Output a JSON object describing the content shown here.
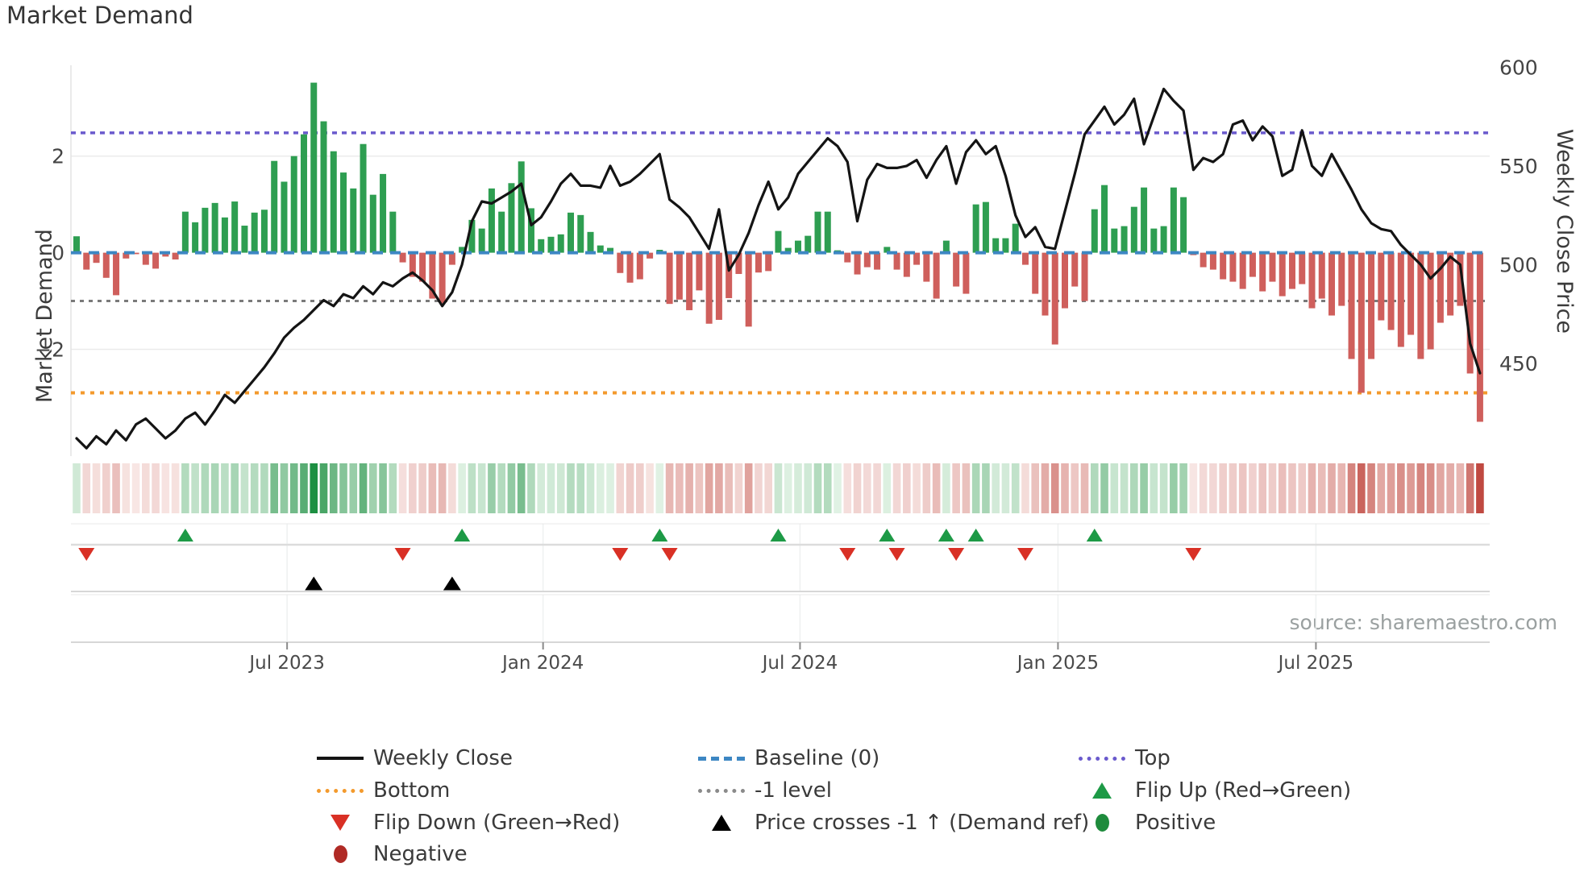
{
  "title": "Market Demand",
  "source": "source: sharemaestro.com",
  "axes": {
    "left_label": "Market Demand",
    "right_label": "Weekly Close Price",
    "left_ticks": [
      {
        "label": "2",
        "value": 2
      },
      {
        "label": "0",
        "value": 0
      },
      {
        "label": "−2",
        "value": -2
      }
    ],
    "right_ticks": [
      {
        "label": "600",
        "value": 600
      },
      {
        "label": "550",
        "value": 550
      },
      {
        "label": "500",
        "value": 500
      },
      {
        "label": "450",
        "value": 450
      }
    ]
  },
  "chart_data": {
    "type": "bar+line",
    "title": "Market Demand",
    "ylabel_left": "Market Demand",
    "ylabel_right": "Weekly Close Price",
    "x_unit": "weeks",
    "n_weeks": 143,
    "x_tick_labels": [
      "Jul 2023",
      "Jan 2024",
      "Jul 2024",
      "Jan 2025",
      "Jul 2025"
    ],
    "x_tick_pos_weeks": [
      21.3,
      47.2,
      73.2,
      99.3,
      125.4
    ],
    "demand_ylim": [
      -4.21,
      3.88
    ],
    "price_ylim": [
      403,
      601
    ],
    "grid_demand_values": [
      2,
      -2
    ],
    "ref_levels": {
      "top": 2.48,
      "baseline": 0,
      "minus_one": -1,
      "bottom": -2.9
    },
    "demand": [
      0.34,
      -0.35,
      -0.21,
      -0.52,
      -0.88,
      -0.12,
      -0.03,
      -0.25,
      -0.33,
      -0.08,
      -0.14,
      0.85,
      0.63,
      0.93,
      1.03,
      0.73,
      1.06,
      0.56,
      0.83,
      0.89,
      1.9,
      1.47,
      2.0,
      2.45,
      3.52,
      2.72,
      2.1,
      1.66,
      1.33,
      2.25,
      1.2,
      1.63,
      0.85,
      -0.2,
      -0.5,
      -0.6,
      -0.95,
      -1.05,
      -0.25,
      0.12,
      0.68,
      0.5,
      1.33,
      0.85,
      1.44,
      1.89,
      0.92,
      0.28,
      0.33,
      0.38,
      0.83,
      0.78,
      0.43,
      0.15,
      0.1,
      -0.42,
      -0.62,
      -0.55,
      -0.12,
      0.06,
      -1.06,
      -0.97,
      -1.19,
      -0.78,
      -1.47,
      -1.39,
      -0.94,
      -0.44,
      -1.53,
      -0.41,
      -0.38,
      0.45,
      0.1,
      0.25,
      0.35,
      0.85,
      0.85,
      0.05,
      -0.2,
      -0.45,
      -0.3,
      -0.35,
      0.12,
      -0.35,
      -0.5,
      -0.25,
      -0.6,
      -0.95,
      0.25,
      -0.7,
      -0.85,
      1.0,
      1.05,
      0.3,
      0.3,
      0.6,
      -0.25,
      -0.85,
      -1.3,
      -1.9,
      -1.15,
      -0.7,
      -1.0,
      0.9,
      1.4,
      0.5,
      0.55,
      0.95,
      1.35,
      0.5,
      0.55,
      1.35,
      1.15,
      -0.05,
      -0.3,
      -0.35,
      -0.55,
      -0.6,
      -0.75,
      -0.5,
      -0.8,
      -0.6,
      -0.9,
      -0.75,
      -0.65,
      -1.15,
      -0.95,
      -1.3,
      -1.1,
      -2.2,
      -2.9,
      -2.2,
      -1.4,
      -1.6,
      -1.95,
      -1.7,
      -2.2,
      -2.0,
      -1.45,
      -1.3,
      -1.1,
      -2.5,
      -3.5
    ],
    "price": [
      412,
      407,
      413,
      409,
      416,
      411,
      419,
      422,
      417,
      412,
      416,
      422,
      425,
      419,
      426,
      434,
      430,
      436,
      442,
      448,
      455,
      463,
      468,
      472,
      477,
      482,
      479,
      485,
      483,
      489,
      485,
      491,
      489,
      493,
      496,
      492,
      487,
      479,
      486,
      500,
      522,
      532,
      531,
      534,
      537,
      541,
      520,
      524,
      532,
      541,
      546,
      540,
      540,
      539,
      550,
      540,
      542,
      546,
      551,
      556,
      533,
      529,
      524,
      516,
      508,
      528,
      497,
      505,
      516,
      530,
      542,
      528,
      534,
      546,
      552,
      558,
      564,
      560,
      552,
      522,
      543,
      551,
      549,
      549,
      550,
      553,
      544,
      553,
      560,
      541,
      557,
      563,
      556,
      560,
      545,
      525,
      514,
      519,
      509,
      508,
      527,
      546,
      566,
      573,
      580,
      571,
      576,
      584,
      561,
      575,
      589,
      583,
      578,
      548,
      554,
      552,
      556,
      571,
      573,
      563,
      570,
      565,
      545,
      548,
      568,
      550,
      545,
      556,
      547,
      538,
      528,
      521,
      518,
      517,
      510,
      505,
      500,
      493,
      498,
      504,
      500,
      460,
      445
    ],
    "markers": {
      "flip_up_weeks": [
        11,
        39,
        59,
        71,
        82,
        88,
        91,
        103
      ],
      "flip_down_weeks": [
        1,
        33,
        55,
        60,
        78,
        83,
        89,
        96,
        113
      ],
      "price_cross_weeks": [
        24,
        38
      ]
    },
    "heat_strip": "diverging red-green colored by weekly demand value",
    "legend_position": "bottom"
  },
  "legend": {
    "items": [
      {
        "label": "Weekly Close",
        "swatch": "line-black"
      },
      {
        "label": "Bottom",
        "swatch": "dotted-orange"
      },
      {
        "label": "Flip Down (Green→Red)",
        "swatch": "triangle-down-red"
      },
      {
        "label": "Negative",
        "swatch": "circle-darkred"
      },
      {
        "label": "Baseline (0)",
        "swatch": "dashed-blue"
      },
      {
        "label": "-1 level",
        "swatch": "dotted-gray"
      },
      {
        "label": "Price crosses -1 ↑ (Demand ref)",
        "swatch": "triangle-up-black"
      },
      {
        "label": "Top",
        "swatch": "dotted-purple"
      },
      {
        "label": "Flip Up (Red→Green)",
        "swatch": "triangle-up-green"
      },
      {
        "label": "Positive",
        "swatch": "circle-green"
      }
    ]
  },
  "colors": {
    "bar_positive": "#2e9e51",
    "bar_negative": "#cf5f5c",
    "price_line": "#141414",
    "baseline": "#3d87c3",
    "top_line": "#6a5acd",
    "minus_one_line": "#7a7a7a",
    "bottom_line": "#f39a2d",
    "heat_positive_max": "#1d8f42",
    "heat_positive_min": "#e3f3e6",
    "heat_negative_max": "#c04840",
    "heat_negative_min": "#f8e7e5",
    "flip_up_marker": "#1d9a46",
    "flip_down_marker": "#d93025",
    "price_cross_marker": "#000000",
    "grid": "#ebebeb",
    "tick_text": "#444444",
    "date_text": "#4a4a4a"
  }
}
